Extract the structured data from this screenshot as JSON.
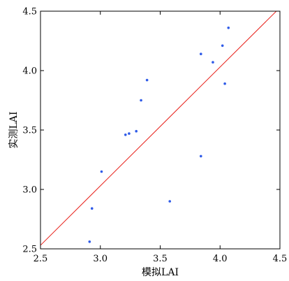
{
  "chart_data": {
    "type": "scatter",
    "title": "",
    "xlabel": "模拟LAI",
    "ylabel": "实测LAI",
    "xlim": [
      2.5,
      4.5
    ],
    "ylim": [
      2.5,
      4.5
    ],
    "x_ticks": [
      "2.5",
      "3.0",
      "3.5",
      "4.0",
      "4.5"
    ],
    "y_ticks": [
      "2.5",
      "3.0",
      "3.5",
      "4.0",
      "4.5"
    ],
    "grid": false,
    "legend": false,
    "colors": {
      "points": "#2f5be8",
      "line": "#e8221c",
      "frame": "#000000"
    },
    "series": [
      {
        "kind": "points",
        "x": [
          2.91,
          2.93,
          3.01,
          3.21,
          3.24,
          3.3,
          3.34,
          3.39,
          3.58,
          3.84,
          3.84,
          3.94,
          4.02,
          4.04,
          4.07
        ],
        "y": [
          2.56,
          2.84,
          3.15,
          3.46,
          3.47,
          3.49,
          3.75,
          3.92,
          2.9,
          3.28,
          4.14,
          4.07,
          4.21,
          3.89,
          4.36
        ]
      },
      {
        "kind": "line",
        "x": [
          2.5,
          4.5
        ],
        "y": [
          2.53,
          4.53
        ]
      }
    ]
  }
}
